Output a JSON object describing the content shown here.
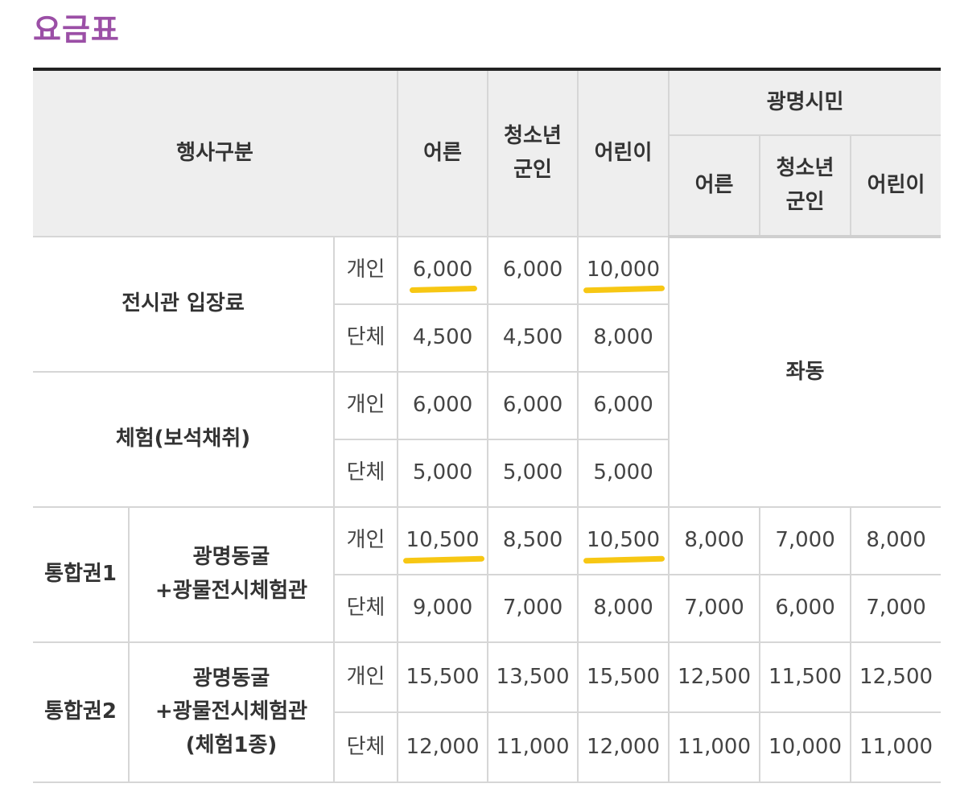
{
  "page_title": "요금표",
  "colors": {
    "title": "#9b4fa6",
    "highlight": "#f7c713",
    "header_bg": "#eeeeee"
  },
  "header": {
    "category": "행사구분",
    "adult": "어른",
    "youth_line1": "청소년",
    "youth_line2": "군인",
    "child": "어린이",
    "citizen": "광명시민",
    "citizen_adult": "어른",
    "citizen_youth_line1": "청소년",
    "citizen_youth_line2": "군인",
    "citizen_child": "어린이"
  },
  "labels": {
    "individual": "개인",
    "group": "단체",
    "same": "좌동"
  },
  "rows": {
    "exhibit": {
      "label": "전시관 입장료",
      "individual": [
        "6,000",
        "6,000",
        "10,000"
      ],
      "group": [
        "4,500",
        "4,500",
        "8,000"
      ]
    },
    "experience": {
      "label": "체험(보석채취)",
      "individual": [
        "6,000",
        "6,000",
        "6,000"
      ],
      "group": [
        "5,000",
        "5,000",
        "5,000"
      ]
    },
    "combo1": {
      "label": "통합권1",
      "sub_line1": "광명동굴",
      "sub_line2": "+광물전시체험관",
      "individual": [
        "10,500",
        "8,500",
        "10,500",
        "8,000",
        "7,000",
        "8,000"
      ],
      "group": [
        "9,000",
        "7,000",
        "8,000",
        "7,000",
        "6,000",
        "7,000"
      ]
    },
    "combo2": {
      "label": "통합권2",
      "sub_line1": "광명동굴",
      "sub_line2": "+광물전시체험관",
      "sub_line3": "(체험1종)",
      "individual": [
        "15,500",
        "13,500",
        "15,500",
        "12,500",
        "11,500",
        "12,500"
      ],
      "group": [
        "12,000",
        "11,000",
        "12,000",
        "11,000",
        "10,000",
        "11,000"
      ]
    }
  }
}
